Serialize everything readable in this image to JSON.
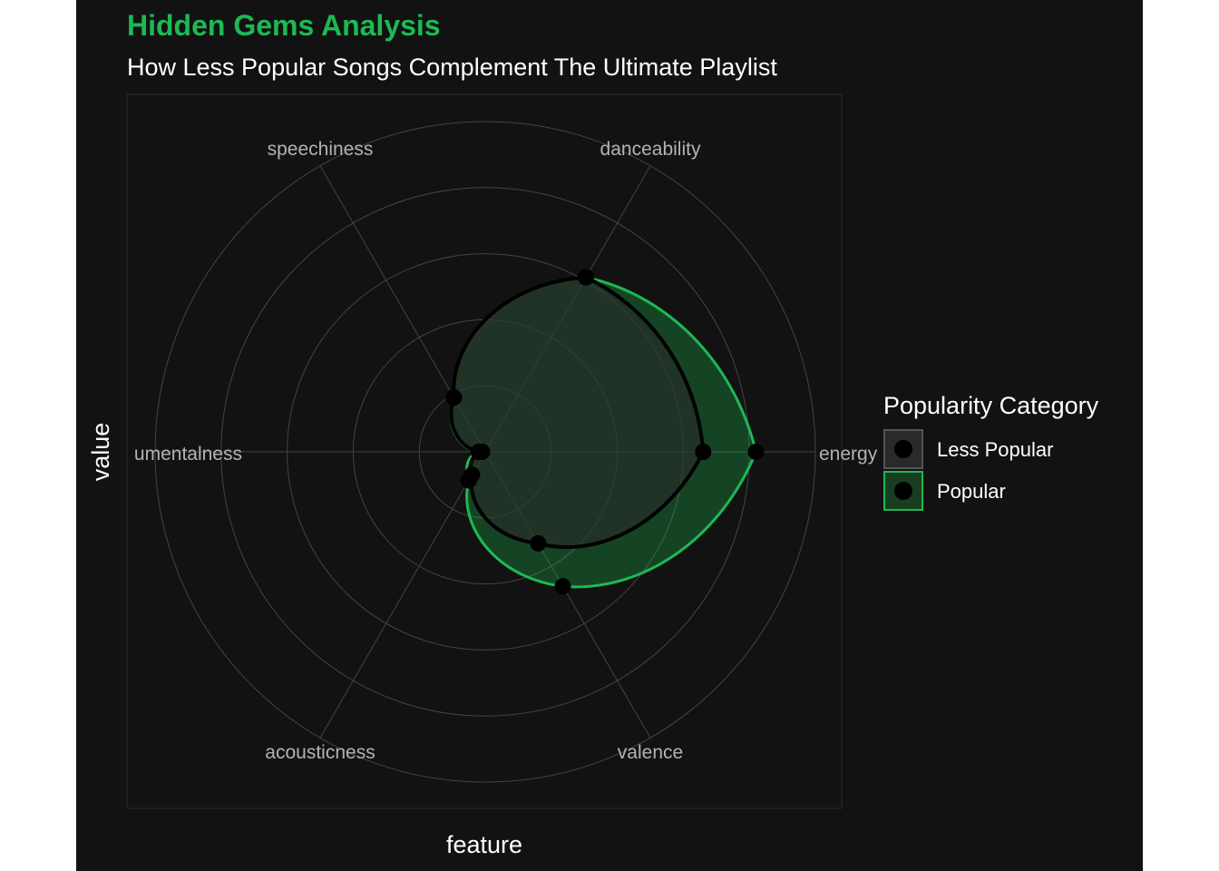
{
  "chart_data": {
    "type": "radar",
    "title": "Hidden Gems Analysis",
    "subtitle": "How Less Popular Songs Complement The Ultimate Playlist",
    "xlabel": "feature",
    "ylabel": "value",
    "features": [
      "energy",
      "danceability",
      "speechiness",
      "instrumentalness",
      "acousticness",
      "valence"
    ],
    "feature_labels_shown": [
      "energy",
      "danceability",
      "speechiness",
      "umentalness",
      "acousticness",
      "valence"
    ],
    "radial_range": [
      0,
      1
    ],
    "radial_gridlines": [
      0.2,
      0.4,
      0.6,
      0.8,
      1.0
    ],
    "grid": true,
    "legend": {
      "title": "Popularity Category",
      "placement": "right",
      "entries": [
        "Less Popular",
        "Popular"
      ]
    },
    "series": [
      {
        "name": "Less Popular",
        "values": [
          0.66,
          0.61,
          0.19,
          0.01,
          0.08,
          0.32
        ]
      },
      {
        "name": "Popular",
        "values": [
          0.82,
          0.61,
          0.19,
          0.02,
          0.1,
          0.47
        ]
      }
    ],
    "colors": {
      "background": "#121212",
      "title": "#1DB954",
      "text": "#FFFFFF",
      "axis_label": "#B3B3B3",
      "grid": "#444444",
      "popular_stroke": "#1DB954",
      "popular_fill": "#1DB954",
      "less_popular_stroke": "#000000",
      "less_popular_fill": "#282828"
    }
  }
}
